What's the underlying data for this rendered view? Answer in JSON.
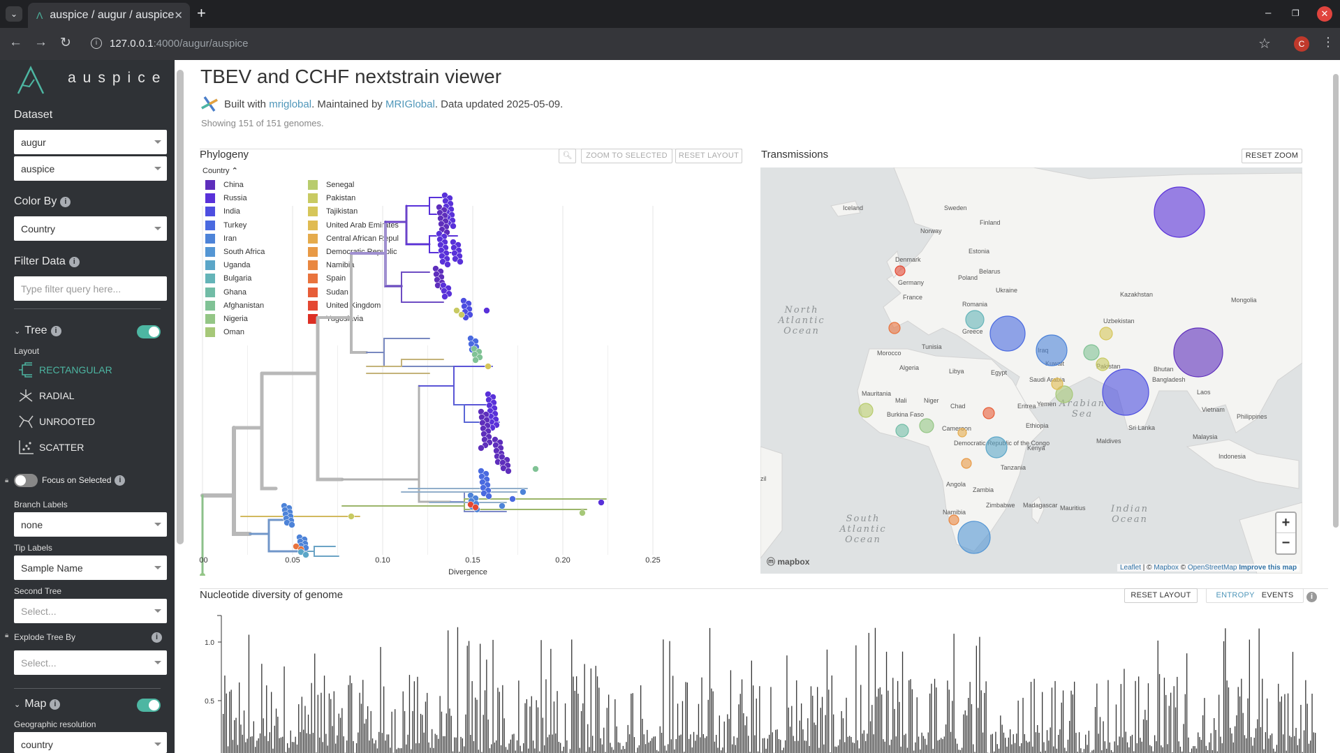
{
  "browser": {
    "tab_title": "auspice / augur / auspice",
    "url_host": "127.0.0.1",
    "url_rest": ":4000/augur/auspice",
    "profile_initial": "C"
  },
  "sidebar": {
    "brand": "auspice",
    "dataset_label": "Dataset",
    "dataset_values": [
      "augur",
      "auspice"
    ],
    "color_by_label": "Color By",
    "color_by_value": "Country",
    "filter_label": "Filter Data",
    "filter_placeholder": "Type filter query here...",
    "tree_label": "Tree",
    "layout_label": "Layout",
    "layouts": [
      "RECTANGULAR",
      "RADIAL",
      "UNROOTED",
      "SCATTER"
    ],
    "focus_label": "Focus on Selected",
    "branch_labels_label": "Branch Labels",
    "branch_labels_value": "none",
    "tip_labels_label": "Tip Labels",
    "tip_labels_value": "Sample Name",
    "second_tree_label": "Second Tree",
    "second_tree_placeholder": "Select...",
    "explode_label": "Explode Tree By",
    "explode_placeholder": "Select...",
    "map_label": "Map",
    "geo_label": "Geographic resolution",
    "geo_value": "country"
  },
  "header": {
    "title": "TBEV and CCHF nextstrain viewer",
    "built_with": "Built with",
    "built_link": "mriglobal",
    "maintained": ". Maintained by",
    "maint_link": "MRIGlobal",
    "updated": ". Data updated 2025-05-09.",
    "showing": "Showing 151 of 151 genomes."
  },
  "phylogeny": {
    "title": "Phylogeny",
    "zoom_btn": "ZOOM TO SELECTED",
    "reset_btn": "RESET LAYOUT",
    "legend_title": "Country",
    "legend": [
      {
        "name": "China",
        "color": "#5e2ebc"
      },
      {
        "name": "Russia",
        "color": "#5931d9"
      },
      {
        "name": "India",
        "color": "#4d4ee0"
      },
      {
        "name": "Turkey",
        "color": "#4a6ae0"
      },
      {
        "name": "Iran",
        "color": "#4d83d8"
      },
      {
        "name": "South Africa",
        "color": "#5496d4"
      },
      {
        "name": "Uganda",
        "color": "#5ba6c8"
      },
      {
        "name": "Bulgaria",
        "color": "#64b4b8"
      },
      {
        "name": "Ghana",
        "color": "#71bca6"
      },
      {
        "name": "Afghanistan",
        "color": "#80c295"
      },
      {
        "name": "Nigeria",
        "color": "#94c686"
      },
      {
        "name": "Oman",
        "color": "#a6c878"
      },
      {
        "name": "Senegal",
        "color": "#b8cc6d"
      },
      {
        "name": "Pakistan",
        "color": "#c8ca62"
      },
      {
        "name": "Tajikistan",
        "color": "#d6c65a"
      },
      {
        "name": "United Arab Emirates",
        "color": "#e0bb52"
      },
      {
        "name": "Central African Repul",
        "color": "#e5ab4c"
      },
      {
        "name": "Democratic Republic",
        "color": "#e89a46"
      },
      {
        "name": "Namibia",
        "color": "#e98741"
      },
      {
        "name": "Spain",
        "color": "#e9733d"
      },
      {
        "name": "Sudan",
        "color": "#e75d38"
      },
      {
        "name": "United Kingdom",
        "color": "#e44833"
      },
      {
        "name": "Yugoslavia",
        "color": "#dc2f24"
      }
    ],
    "x_ticks": [
      ".00",
      "0.05",
      "0.10",
      "0.15",
      "0.20",
      "0.25"
    ],
    "x_label": "Divergence"
  },
  "map": {
    "title": "Transmissions",
    "reset_btn": "RESET ZOOM",
    "labels": [
      {
        "t": "Iceland",
        "x": 1207,
        "y": 301
      },
      {
        "t": "Sweden",
        "x": 1352,
        "y": 301
      },
      {
        "t": "Finland",
        "x": 1403,
        "y": 322
      },
      {
        "t": "Norway",
        "x": 1318,
        "y": 334
      },
      {
        "t": "Denmark",
        "x": 1282,
        "y": 375
      },
      {
        "t": "Estonia",
        "x": 1387,
        "y": 363
      },
      {
        "t": "Belarus",
        "x": 1402,
        "y": 392
      },
      {
        "t": "Poland",
        "x": 1372,
        "y": 401
      },
      {
        "t": "Germany",
        "x": 1286,
        "y": 408
      },
      {
        "t": "France",
        "x": 1293,
        "y": 429
      },
      {
        "t": "Ukraine",
        "x": 1426,
        "y": 419
      },
      {
        "t": "Romania",
        "x": 1378,
        "y": 439
      },
      {
        "t": "Kazakhstan",
        "x": 1604,
        "y": 425
      },
      {
        "t": "Mongolia",
        "x": 1763,
        "y": 433
      },
      {
        "t": "Greece",
        "x": 1378,
        "y": 478
      },
      {
        "t": "Uzbekistan",
        "x": 1580,
        "y": 463
      },
      {
        "t": "Tunisia",
        "x": 1320,
        "y": 500
      },
      {
        "t": "Morocco",
        "x": 1256,
        "y": 509
      },
      {
        "t": "Iraq",
        "x": 1486,
        "y": 505
      },
      {
        "t": "Algeria",
        "x": 1288,
        "y": 530
      },
      {
        "t": "Libya",
        "x": 1359,
        "y": 535
      },
      {
        "t": "Egypt",
        "x": 1419,
        "y": 537
      },
      {
        "t": "Kuwait",
        "x": 1497,
        "y": 524
      },
      {
        "t": "Pakistan",
        "x": 1570,
        "y": 528
      },
      {
        "t": "Saudi Arabia",
        "x": 1474,
        "y": 547
      },
      {
        "t": "Bangladesh",
        "x": 1650,
        "y": 547
      },
      {
        "t": "Bhutan",
        "x": 1652,
        "y": 532
      },
      {
        "t": "Laos",
        "x": 1714,
        "y": 565
      },
      {
        "t": "Mauritania",
        "x": 1234,
        "y": 567
      },
      {
        "t": "Mali",
        "x": 1282,
        "y": 577
      },
      {
        "t": "Niger",
        "x": 1323,
        "y": 577
      },
      {
        "t": "Chad",
        "x": 1361,
        "y": 585
      },
      {
        "t": "Yemen",
        "x": 1485,
        "y": 582
      },
      {
        "t": "Eritrea",
        "x": 1457,
        "y": 585
      },
      {
        "t": "Vietnam",
        "x": 1721,
        "y": 590
      },
      {
        "t": "Philippines",
        "x": 1771,
        "y": 600
      },
      {
        "t": "Burkina Faso",
        "x": 1270,
        "y": 597
      },
      {
        "t": "Ethiopia",
        "x": 1469,
        "y": 613
      },
      {
        "t": "Sri Lanka",
        "x": 1616,
        "y": 616
      },
      {
        "t": "Maldives",
        "x": 1570,
        "y": 635
      },
      {
        "t": "Malaysia",
        "x": 1708,
        "y": 629
      },
      {
        "t": "Cameroon",
        "x": 1349,
        "y": 617
      },
      {
        "t": "Democratic Republic of the Congo",
        "x": 1366,
        "y": 638
      },
      {
        "t": "Kenya",
        "x": 1471,
        "y": 645
      },
      {
        "t": "Tanzania",
        "x": 1433,
        "y": 673
      },
      {
        "t": "Indonesia",
        "x": 1745,
        "y": 657
      },
      {
        "t": "Angola",
        "x": 1355,
        "y": 697
      },
      {
        "t": "Zambia",
        "x": 1393,
        "y": 705
      },
      {
        "t": "Zimbabwe",
        "x": 1412,
        "y": 727
      },
      {
        "t": "Madagascar",
        "x": 1465,
        "y": 727
      },
      {
        "t": "Namibia",
        "x": 1350,
        "y": 737
      },
      {
        "t": "Mauritius",
        "x": 1518,
        "y": 731
      },
      {
        "t": "zil",
        "x": 1089,
        "y": 689
      }
    ],
    "oceans": [
      {
        "lines": [
          "North",
          "Atlantic",
          "Ocean"
        ],
        "x": 1148,
        "y": 448
      },
      {
        "lines": [
          "Arabian",
          "Sea"
        ],
        "x": 1550,
        "y": 582
      },
      {
        "lines": [
          "Indian",
          "Ocean"
        ],
        "x": 1618,
        "y": 733
      },
      {
        "lines": [
          "South",
          "Atlantic",
          "Ocean"
        ],
        "x": 1236,
        "y": 747
      }
    ],
    "circles": [
      {
        "name": "Russia",
        "x": 1689,
        "y": 304,
        "r": 36,
        "color": "#5931d9"
      },
      {
        "name": "China",
        "x": 1716,
        "y": 505,
        "r": 35,
        "color": "#5e2ebc"
      },
      {
        "name": "India",
        "x": 1612,
        "y": 562,
        "r": 33,
        "color": "#4d4ee0"
      },
      {
        "name": "Turkey",
        "x": 1443,
        "y": 478,
        "r": 25,
        "color": "#4a6ae0"
      },
      {
        "name": "Iran",
        "x": 1506,
        "y": 502,
        "r": 22,
        "color": "#4d83d8"
      },
      {
        "name": "South Africa",
        "x": 1395,
        "y": 770,
        "r": 23,
        "color": "#5496d4"
      },
      {
        "name": "Uganda",
        "x": 1427,
        "y": 641,
        "r": 15,
        "color": "#5ba6c8"
      },
      {
        "name": "Bulgaria",
        "x": 1396,
        "y": 458,
        "r": 13,
        "color": "#64b4b8"
      },
      {
        "name": "Afghanistan",
        "x": 1563,
        "y": 505,
        "r": 11,
        "color": "#80c295"
      },
      {
        "name": "Pakistan",
        "x": 1579,
        "y": 522,
        "r": 9,
        "color": "#c8ca62"
      },
      {
        "name": "Tajikistan",
        "x": 1584,
        "y": 478,
        "r": 9,
        "color": "#d6c65a"
      },
      {
        "name": "Oman",
        "x": 1524,
        "y": 565,
        "r": 12,
        "color": "#a6c878"
      },
      {
        "name": "United Arab Emirates",
        "x": 1514,
        "y": 550,
        "r": 8,
        "color": "#e0bb52"
      },
      {
        "name": "Nigeria",
        "x": 1327,
        "y": 610,
        "r": 10,
        "color": "#94c686"
      },
      {
        "name": "Ghana",
        "x": 1292,
        "y": 617,
        "r": 9,
        "color": "#71bca6"
      },
      {
        "name": "Senegal",
        "x": 1240,
        "y": 588,
        "r": 10,
        "color": "#b8cc6d"
      },
      {
        "name": "Sudan",
        "x": 1416,
        "y": 592,
        "r": 8,
        "color": "#e75d38"
      },
      {
        "name": "Spain",
        "x": 1281,
        "y": 470,
        "r": 8,
        "color": "#e9733d"
      },
      {
        "name": "United Kingdom",
        "x": 1289,
        "y": 388,
        "r": 7,
        "color": "#e44833"
      },
      {
        "name": "Central African Republic",
        "x": 1378,
        "y": 620,
        "r": 6,
        "color": "#e5ab4c"
      },
      {
        "name": "Democratic Republic",
        "x": 1384,
        "y": 664,
        "r": 7,
        "color": "#e89a46"
      },
      {
        "name": "Namibia",
        "x": 1366,
        "y": 745,
        "r": 7,
        "color": "#e98741"
      }
    ],
    "attribution": {
      "leaflet": "Leaflet",
      "mapbox": "Mapbox",
      "osm": "OpenStreetMap",
      "improve": "Improve this map",
      "sep1": " | © ",
      "sep2": " © "
    },
    "mapbox_logo": "mapbox"
  },
  "entropy": {
    "title": "Nucleotide diversity of genome",
    "reset_btn": "RESET LAYOUT",
    "tab_entropy": "ENTROPY",
    "tab_events": "EVENTS",
    "y_ticks": [
      "1.0",
      "0.5"
    ]
  }
}
